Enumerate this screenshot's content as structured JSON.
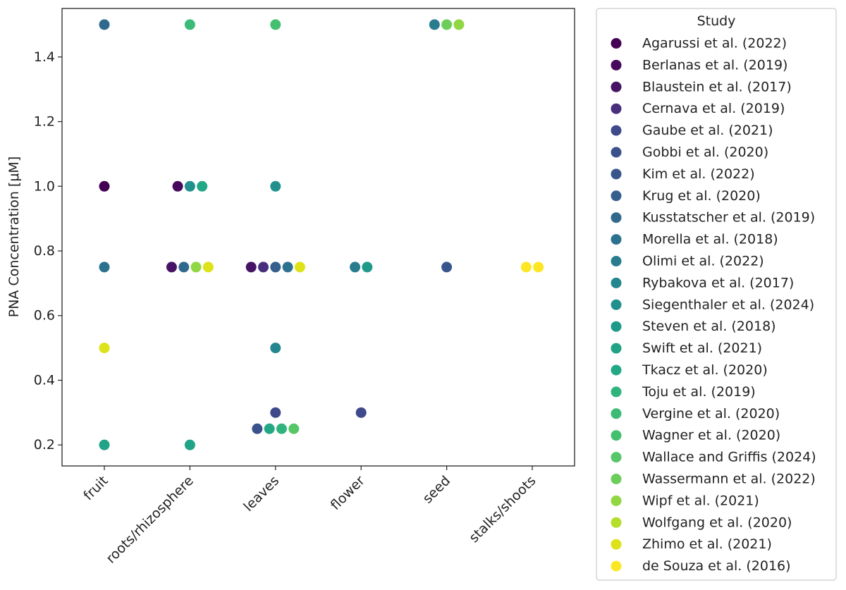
{
  "chart_data": {
    "type": "scatter",
    "title": "",
    "xlabel": "",
    "ylabel": "PNA Concentration [μM]",
    "ylim": [
      0.135,
      1.55
    ],
    "yticks": [
      0.2,
      0.4,
      0.6,
      0.8,
      1.0,
      1.2,
      1.4
    ],
    "ytick_labels": [
      "0.2",
      "0.4",
      "0.6",
      "0.8",
      "1.0",
      "1.2",
      "1.4"
    ],
    "categories": [
      "fruit",
      "roots/rhizosphere",
      "leaves",
      "flower",
      "seed",
      "stalks/shoots"
    ],
    "grid": false,
    "legend": {
      "title": "Study",
      "placement": "outside-right"
    },
    "series": [
      {
        "name": "Agarussi et al. (2022)",
        "color": "#440154",
        "points": [
          {
            "category": "fruit",
            "y": 1.0
          }
        ]
      },
      {
        "name": "Berlanas et al. (2019)",
        "color": "#46085c",
        "points": [
          {
            "category": "roots/rhizosphere",
            "y": 1.0
          }
        ]
      },
      {
        "name": "Blaustein et al. (2017)",
        "color": "#471365",
        "points": [
          {
            "category": "roots/rhizosphere",
            "y": 0.75
          },
          {
            "category": "leaves",
            "y": 0.75
          }
        ]
      },
      {
        "name": "Cernava et al. (2019)",
        "color": "#472f7d",
        "points": [
          {
            "category": "leaves",
            "y": 0.75
          }
        ]
      },
      {
        "name": "Gaube et al. (2021)",
        "color": "#3e4a89",
        "points": [
          {
            "category": "leaves",
            "y": 0.3
          },
          {
            "category": "flower",
            "y": 0.3
          }
        ]
      },
      {
        "name": "Gobbi et al. (2020)",
        "color": "#3b518b",
        "points": [
          {
            "category": "leaves",
            "y": 0.25
          }
        ]
      },
      {
        "name": "Kim et al. (2022)",
        "color": "#39568c",
        "points": [
          {
            "category": "seed",
            "y": 0.75
          }
        ]
      },
      {
        "name": "Krug et al. (2020)",
        "color": "#355f8d",
        "points": [
          {
            "category": "leaves",
            "y": 0.75
          }
        ]
      },
      {
        "name": "Kusstatscher et al. (2019)",
        "color": "#30698e",
        "points": [
          {
            "category": "fruit",
            "y": 1.5
          },
          {
            "category": "roots/rhizosphere",
            "y": 0.75
          }
        ]
      },
      {
        "name": "Morella et al. (2018)",
        "color": "#2c728e",
        "points": [
          {
            "category": "fruit",
            "y": 0.75
          },
          {
            "category": "leaves",
            "y": 0.75
          }
        ]
      },
      {
        "name": "Olimi et al. (2022)",
        "color": "#287c8e",
        "points": [
          {
            "category": "seed",
            "y": 1.5
          },
          {
            "category": "flower",
            "y": 0.75
          }
        ]
      },
      {
        "name": "Rybakova et al. (2017)",
        "color": "#24868e",
        "points": [
          {
            "category": "leaves",
            "y": 0.5
          }
        ]
      },
      {
        "name": "Siegenthaler et al. (2024)",
        "color": "#21908d",
        "points": [
          {
            "category": "roots/rhizosphere",
            "y": 1.0
          },
          {
            "category": "leaves",
            "y": 1.0
          }
        ]
      },
      {
        "name": "Steven et al. (2018)",
        "color": "#1f998a",
        "points": [
          {
            "category": "flower",
            "y": 0.75
          }
        ]
      },
      {
        "name": "Swift et al. (2021)",
        "color": "#20a386",
        "points": [
          {
            "category": "fruit",
            "y": 0.2
          },
          {
            "category": "roots/rhizosphere",
            "y": 0.2
          }
        ]
      },
      {
        "name": "Tkacz et al. (2020)",
        "color": "#22a884",
        "points": [
          {
            "category": "roots/rhizosphere",
            "y": 1.0
          },
          {
            "category": "leaves",
            "y": 0.25
          }
        ]
      },
      {
        "name": "Toju et al. (2019)",
        "color": "#2fb47c",
        "points": [
          {
            "category": "leaves",
            "y": 0.25
          }
        ]
      },
      {
        "name": "Vergine et al. (2020)",
        "color": "#3bbb75",
        "points": [
          {
            "category": "roots/rhizosphere",
            "y": 1.5
          }
        ]
      },
      {
        "name": "Wagner et al. (2020)",
        "color": "#44bf70",
        "points": [
          {
            "category": "leaves",
            "y": 1.5
          }
        ]
      },
      {
        "name": "Wallace and Griffis (2024)",
        "color": "#56c667",
        "points": [
          {
            "category": "leaves",
            "y": 0.25
          }
        ]
      },
      {
        "name": "Wassermann et al. (2022)",
        "color": "#6ccd5a",
        "points": [
          {
            "category": "seed",
            "y": 1.5
          }
        ]
      },
      {
        "name": "Wipf et al. (2021)",
        "color": "#90d743",
        "points": [
          {
            "category": "roots/rhizosphere",
            "y": 0.75
          },
          {
            "category": "seed",
            "y": 1.5
          }
        ]
      },
      {
        "name": "Wolfgang et al. (2020)",
        "color": "#b5de2b",
        "points": []
      },
      {
        "name": "Zhimo et al. (2021)",
        "color": "#dde318",
        "points": [
          {
            "category": "fruit",
            "y": 0.5
          },
          {
            "category": "roots/rhizosphere",
            "y": 0.75
          },
          {
            "category": "leaves",
            "y": 0.75
          }
        ]
      },
      {
        "name": "de Souza et al. (2016)",
        "color": "#fde725",
        "points": [
          {
            "category": "stalks/shoots",
            "y": 0.75
          },
          {
            "category": "stalks/shoots",
            "y": 0.75
          }
        ]
      }
    ]
  }
}
